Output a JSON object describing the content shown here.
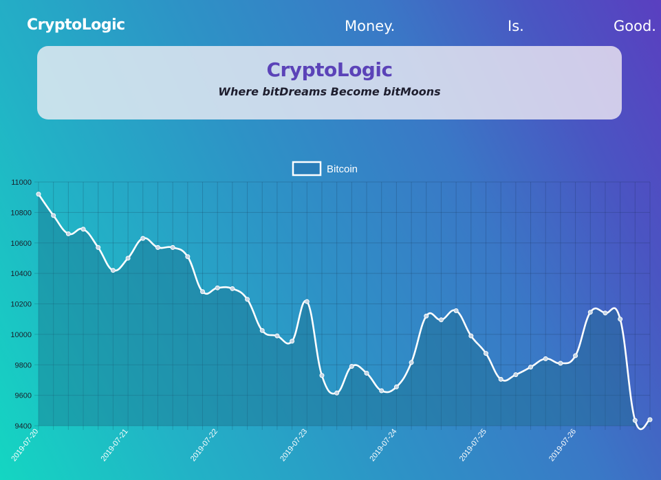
{
  "nav": {
    "brand": "CryptoLogic",
    "links": [
      "Money.",
      "Is.",
      "Good."
    ]
  },
  "hero": {
    "title": "CryptoLogic",
    "subtitle": "Where bitDreams Become bitMoons"
  },
  "colors": {
    "accent": "#5b43b8",
    "line": "#ffffff",
    "fill": "#1e7e96"
  },
  "chart_data": {
    "type": "area",
    "legend": [
      "Bitcoin"
    ],
    "legend_position": "top-center",
    "grid": true,
    "ylim": [
      9400,
      11000
    ],
    "y_ticks": [
      "11000",
      "10800",
      "10600",
      "10400",
      "10200",
      "10000",
      "9800",
      "9600",
      "9400"
    ],
    "x_ticks": [
      "2019-07-20",
      "2019-07-21",
      "2019-07-22",
      "2019-07-23",
      "2019-07-24",
      "2019-07-25",
      "2019-07-26"
    ],
    "series": [
      {
        "name": "Bitcoin",
        "values": [
          10920,
          10780,
          10660,
          10690,
          10570,
          10420,
          10500,
          10630,
          10570,
          10570,
          10510,
          10280,
          10305,
          10300,
          10230,
          10025,
          9990,
          9955,
          10215,
          9730,
          9615,
          9790,
          9745,
          9630,
          9655,
          9815,
          10120,
          10095,
          10155,
          9990,
          9875,
          9705,
          9735,
          9785,
          9840,
          9810,
          9860,
          10145,
          10140,
          10100,
          9435,
          9440
        ]
      }
    ]
  }
}
